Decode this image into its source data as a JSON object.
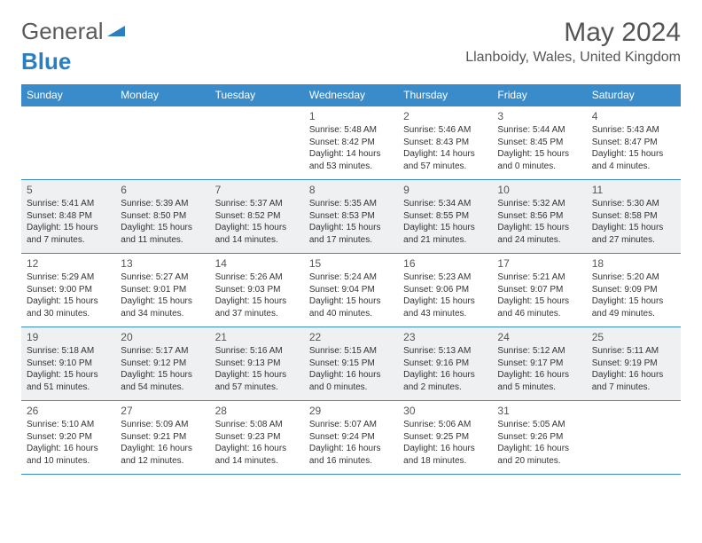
{
  "brand": {
    "part1": "General",
    "part2": "Blue"
  },
  "title": "May 2024",
  "location": "Llanboidy, Wales, United Kingdom",
  "colors": {
    "header_bg": "#3a8bc9",
    "alt_row_bg": "#eef0f2",
    "text": "#333333",
    "brand_gray": "#5a5a5a",
    "brand_blue": "#2a7fc0"
  },
  "weekdays": [
    "Sunday",
    "Monday",
    "Tuesday",
    "Wednesday",
    "Thursday",
    "Friday",
    "Saturday"
  ],
  "weeks": [
    {
      "alt": false,
      "days": [
        null,
        null,
        null,
        {
          "n": "1",
          "sunrise": "Sunrise: 5:48 AM",
          "sunset": "Sunset: 8:42 PM",
          "daylight": "Daylight: 14 hours and 53 minutes."
        },
        {
          "n": "2",
          "sunrise": "Sunrise: 5:46 AM",
          "sunset": "Sunset: 8:43 PM",
          "daylight": "Daylight: 14 hours and 57 minutes."
        },
        {
          "n": "3",
          "sunrise": "Sunrise: 5:44 AM",
          "sunset": "Sunset: 8:45 PM",
          "daylight": "Daylight: 15 hours and 0 minutes."
        },
        {
          "n": "4",
          "sunrise": "Sunrise: 5:43 AM",
          "sunset": "Sunset: 8:47 PM",
          "daylight": "Daylight: 15 hours and 4 minutes."
        }
      ]
    },
    {
      "alt": true,
      "days": [
        {
          "n": "5",
          "sunrise": "Sunrise: 5:41 AM",
          "sunset": "Sunset: 8:48 PM",
          "daylight": "Daylight: 15 hours and 7 minutes."
        },
        {
          "n": "6",
          "sunrise": "Sunrise: 5:39 AM",
          "sunset": "Sunset: 8:50 PM",
          "daylight": "Daylight: 15 hours and 11 minutes."
        },
        {
          "n": "7",
          "sunrise": "Sunrise: 5:37 AM",
          "sunset": "Sunset: 8:52 PM",
          "daylight": "Daylight: 15 hours and 14 minutes."
        },
        {
          "n": "8",
          "sunrise": "Sunrise: 5:35 AM",
          "sunset": "Sunset: 8:53 PM",
          "daylight": "Daylight: 15 hours and 17 minutes."
        },
        {
          "n": "9",
          "sunrise": "Sunrise: 5:34 AM",
          "sunset": "Sunset: 8:55 PM",
          "daylight": "Daylight: 15 hours and 21 minutes."
        },
        {
          "n": "10",
          "sunrise": "Sunrise: 5:32 AM",
          "sunset": "Sunset: 8:56 PM",
          "daylight": "Daylight: 15 hours and 24 minutes."
        },
        {
          "n": "11",
          "sunrise": "Sunrise: 5:30 AM",
          "sunset": "Sunset: 8:58 PM",
          "daylight": "Daylight: 15 hours and 27 minutes."
        }
      ]
    },
    {
      "alt": false,
      "days": [
        {
          "n": "12",
          "sunrise": "Sunrise: 5:29 AM",
          "sunset": "Sunset: 9:00 PM",
          "daylight": "Daylight: 15 hours and 30 minutes."
        },
        {
          "n": "13",
          "sunrise": "Sunrise: 5:27 AM",
          "sunset": "Sunset: 9:01 PM",
          "daylight": "Daylight: 15 hours and 34 minutes."
        },
        {
          "n": "14",
          "sunrise": "Sunrise: 5:26 AM",
          "sunset": "Sunset: 9:03 PM",
          "daylight": "Daylight: 15 hours and 37 minutes."
        },
        {
          "n": "15",
          "sunrise": "Sunrise: 5:24 AM",
          "sunset": "Sunset: 9:04 PM",
          "daylight": "Daylight: 15 hours and 40 minutes."
        },
        {
          "n": "16",
          "sunrise": "Sunrise: 5:23 AM",
          "sunset": "Sunset: 9:06 PM",
          "daylight": "Daylight: 15 hours and 43 minutes."
        },
        {
          "n": "17",
          "sunrise": "Sunrise: 5:21 AM",
          "sunset": "Sunset: 9:07 PM",
          "daylight": "Daylight: 15 hours and 46 minutes."
        },
        {
          "n": "18",
          "sunrise": "Sunrise: 5:20 AM",
          "sunset": "Sunset: 9:09 PM",
          "daylight": "Daylight: 15 hours and 49 minutes."
        }
      ]
    },
    {
      "alt": true,
      "days": [
        {
          "n": "19",
          "sunrise": "Sunrise: 5:18 AM",
          "sunset": "Sunset: 9:10 PM",
          "daylight": "Daylight: 15 hours and 51 minutes."
        },
        {
          "n": "20",
          "sunrise": "Sunrise: 5:17 AM",
          "sunset": "Sunset: 9:12 PM",
          "daylight": "Daylight: 15 hours and 54 minutes."
        },
        {
          "n": "21",
          "sunrise": "Sunrise: 5:16 AM",
          "sunset": "Sunset: 9:13 PM",
          "daylight": "Daylight: 15 hours and 57 minutes."
        },
        {
          "n": "22",
          "sunrise": "Sunrise: 5:15 AM",
          "sunset": "Sunset: 9:15 PM",
          "daylight": "Daylight: 16 hours and 0 minutes."
        },
        {
          "n": "23",
          "sunrise": "Sunrise: 5:13 AM",
          "sunset": "Sunset: 9:16 PM",
          "daylight": "Daylight: 16 hours and 2 minutes."
        },
        {
          "n": "24",
          "sunrise": "Sunrise: 5:12 AM",
          "sunset": "Sunset: 9:17 PM",
          "daylight": "Daylight: 16 hours and 5 minutes."
        },
        {
          "n": "25",
          "sunrise": "Sunrise: 5:11 AM",
          "sunset": "Sunset: 9:19 PM",
          "daylight": "Daylight: 16 hours and 7 minutes."
        }
      ]
    },
    {
      "alt": false,
      "days": [
        {
          "n": "26",
          "sunrise": "Sunrise: 5:10 AM",
          "sunset": "Sunset: 9:20 PM",
          "daylight": "Daylight: 16 hours and 10 minutes."
        },
        {
          "n": "27",
          "sunrise": "Sunrise: 5:09 AM",
          "sunset": "Sunset: 9:21 PM",
          "daylight": "Daylight: 16 hours and 12 minutes."
        },
        {
          "n": "28",
          "sunrise": "Sunrise: 5:08 AM",
          "sunset": "Sunset: 9:23 PM",
          "daylight": "Daylight: 16 hours and 14 minutes."
        },
        {
          "n": "29",
          "sunrise": "Sunrise: 5:07 AM",
          "sunset": "Sunset: 9:24 PM",
          "daylight": "Daylight: 16 hours and 16 minutes."
        },
        {
          "n": "30",
          "sunrise": "Sunrise: 5:06 AM",
          "sunset": "Sunset: 9:25 PM",
          "daylight": "Daylight: 16 hours and 18 minutes."
        },
        {
          "n": "31",
          "sunrise": "Sunrise: 5:05 AM",
          "sunset": "Sunset: 9:26 PM",
          "daylight": "Daylight: 16 hours and 20 minutes."
        },
        null
      ]
    }
  ]
}
